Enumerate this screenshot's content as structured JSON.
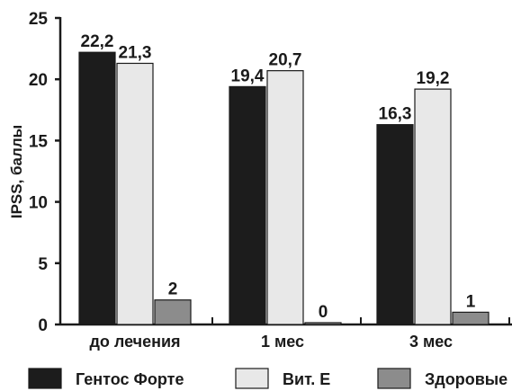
{
  "chart_data": {
    "type": "bar",
    "ylabel": "IPSS, баллы",
    "ylim": [
      0,
      25
    ],
    "yticks": [
      0,
      5,
      10,
      15,
      20,
      25
    ],
    "categories": [
      "до лечения",
      "1 мес",
      "3 мес"
    ],
    "series": [
      {
        "name": "Гентос Форте",
        "values": [
          22.2,
          19.4,
          16.3
        ],
        "labels": [
          "22,2",
          "19,4",
          "16,3"
        ],
        "color": "#1c1c1c"
      },
      {
        "name": "Вит. Е",
        "values": [
          21.3,
          20.7,
          19.2
        ],
        "labels": [
          "21,3",
          "20,7",
          "19,2"
        ],
        "color": "#e8e8e8"
      },
      {
        "name": "Здоровые",
        "values": [
          2,
          0,
          1
        ],
        "labels": [
          "2",
          "0",
          "1"
        ],
        "color": "#8c8c8c"
      }
    ],
    "grid": false,
    "legend_position": "bottom"
  }
}
